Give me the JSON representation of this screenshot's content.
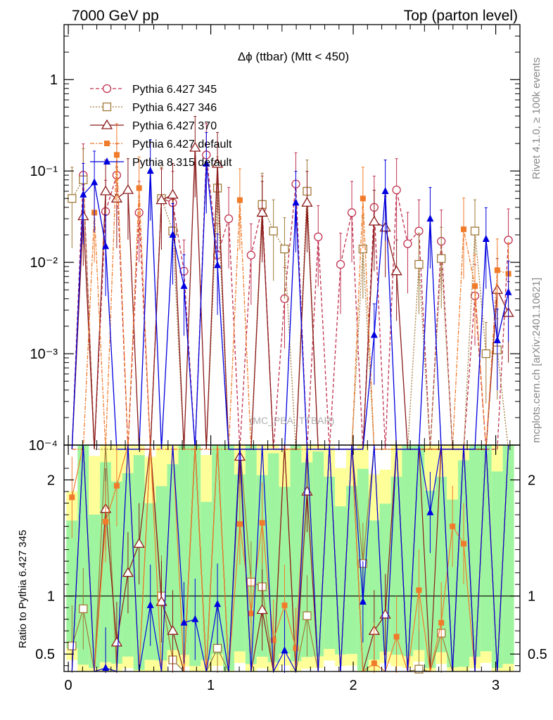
{
  "header": {
    "left": "7000 GeV pp",
    "right": "Top (parton level)"
  },
  "side_labels": {
    "rivet": "Rivet 4.1.0, ≥ 100k events",
    "mcplots": "mcplots.cern.ch [arXiv:2401.10621]"
  },
  "chart_data": [
    {
      "panel": "main",
      "type": "line",
      "title": "Δϕ (ttbar) (Mtt < 450)",
      "watermark": "(MC_PBA_TTBAR)",
      "yscale": "log",
      "ylim": [
        0.0001,
        4
      ],
      "xlim": [
        -0.03,
        3.17
      ],
      "ytick_labels": [
        "1",
        "10⁻¹",
        "10⁻²",
        "10⁻³",
        "10⁻⁴"
      ],
      "ytick_values": [
        1,
        0.1,
        0.01,
        0.001,
        0.0001
      ],
      "x": [
        0.026,
        0.105,
        0.183,
        0.262,
        0.34,
        0.419,
        0.497,
        0.576,
        0.654,
        0.733,
        0.812,
        0.89,
        0.969,
        1.047,
        1.126,
        1.204,
        1.283,
        1.361,
        1.44,
        1.518,
        1.597,
        1.676,
        1.754,
        1.833,
        1.911,
        1.99,
        2.068,
        2.147,
        2.225,
        2.304,
        2.382,
        2.461,
        2.54,
        2.618,
        2.697,
        2.775,
        2.854,
        2.932,
        3.011,
        3.089
      ],
      "series": [
        {
          "name": "Pythia 6.427 345",
          "color": "#c0314f",
          "marker": "circle-open",
          "dash": "5,3",
          "values": [
            9e-05,
            0.09,
            9e-05,
            0.036,
            0.09,
            9e-05,
            0.035,
            9e-05,
            0.05,
            0.045,
            0.008,
            9e-05,
            0.15,
            0.012,
            0.03,
            9e-05,
            0.012,
            0.04,
            9e-05,
            0.004,
            0.072,
            9e-05,
            0.019,
            9e-05,
            0.0095,
            0.035,
            9e-05,
            0.04,
            9e-05,
            0.062,
            0.016,
            0.022,
            9e-05,
            0.017,
            9e-05,
            9e-05,
            0.0043,
            9e-05,
            9e-05,
            0.0175
          ]
        },
        {
          "name": "Pythia 6.427 346",
          "color": "#a07a3a",
          "marker": "square-open",
          "dash": "2,2",
          "values": [
            0.05,
            0.08,
            9e-05,
            9e-05,
            9e-05,
            9e-05,
            9e-05,
            9e-05,
            0.05,
            0.022,
            9e-05,
            9e-05,
            9e-05,
            0.065,
            9e-05,
            9e-05,
            9e-05,
            0.043,
            0.022,
            0.014,
            9e-05,
            0.06,
            9e-05,
            9e-05,
            9e-05,
            9e-05,
            0.014,
            9e-05,
            9e-05,
            9e-05,
            9e-05,
            0.0095,
            9e-05,
            0.011,
            9e-05,
            9e-05,
            0.022,
            0.001,
            0.0011,
            9e-05
          ]
        },
        {
          "name": "Pythia 6.427 370",
          "color": "#8b1a1a",
          "marker": "triangle-open",
          "dash": "",
          "values": [
            9e-05,
            0.032,
            9e-05,
            0.06,
            0.05,
            0.062,
            9e-05,
            9e-05,
            0.048,
            0.055,
            9e-05,
            0.18,
            9e-05,
            0.12,
            9e-05,
            9e-05,
            9e-05,
            0.035,
            9e-05,
            9e-05,
            9e-05,
            0.045,
            9e-05,
            9e-05,
            9e-05,
            9e-05,
            9e-05,
            0.028,
            0.024,
            0.008,
            9e-05,
            9e-05,
            9e-05,
            9e-05,
            9e-05,
            9e-05,
            9e-05,
            9e-05,
            0.005,
            0.0028
          ]
        },
        {
          "name": "Pythia 6.427 default",
          "color": "#f07b2a",
          "marker": "square-filled",
          "dash": "6,2,2,2",
          "values": [
            9e-05,
            9e-05,
            0.035,
            9e-05,
            0.15,
            9e-05,
            0.065,
            9e-05,
            9e-05,
            9e-05,
            9e-05,
            9e-05,
            9e-05,
            9e-05,
            9e-05,
            0.048,
            9e-05,
            9e-05,
            9e-05,
            9e-05,
            9e-05,
            9e-05,
            9e-05,
            9e-05,
            9e-05,
            9e-05,
            0.05,
            9e-05,
            9e-05,
            9e-05,
            9e-05,
            9e-05,
            9e-05,
            9e-05,
            9e-05,
            0.023,
            0.0055,
            9e-05,
            0.0082,
            0.0075
          ]
        },
        {
          "name": "Pythia 8.315 default",
          "color": "#0000e0",
          "marker": "triangle-filled",
          "dash": "",
          "values": [
            9e-05,
            0.055,
            0.075,
            0.015,
            9e-05,
            9e-05,
            9e-05,
            0.1,
            9e-05,
            0.02,
            0.0055,
            9e-05,
            0.12,
            0.0093,
            9e-05,
            9e-05,
            9e-05,
            9e-05,
            9e-05,
            9e-05,
            0.045,
            9e-05,
            9e-05,
            9e-05,
            9e-05,
            9e-05,
            9e-05,
            0.0016,
            0.06,
            9e-05,
            9e-05,
            9e-05,
            0.03,
            9e-05,
            9e-05,
            9e-05,
            9e-05,
            0.018,
            0.0014,
            0.0047
          ]
        }
      ],
      "legend_position": "top-left"
    },
    {
      "panel": "ratio",
      "type": "line",
      "ylabel": "Ratio to Pythia 6.427 345",
      "ylim": [
        0.35,
        2.3
      ],
      "xlim": [
        -0.03,
        3.17
      ],
      "reference_line": 1,
      "ytick_labels_left": [
        "2",
        "1",
        "0.5"
      ],
      "ytick_labels_right": [
        "2",
        "1",
        "0.5"
      ],
      "ytick_values": [
        2,
        1,
        0.5
      ],
      "xtick_labels": [
        "0",
        "1",
        "2",
        "3"
      ],
      "xtick_values": [
        0,
        1,
        2,
        3
      ],
      "band_inner_color": "#9ff59f",
      "band_outer_color": "#ffff99",
      "series": [
        {
          "name": "Pythia 6.427 346",
          "color": "#a07a3a",
          "marker": "square-open",
          "values": [
            0.57,
            0.89,
            null,
            null,
            null,
            null,
            null,
            null,
            1.0,
            0.45,
            null,
            null,
            null,
            0.55,
            null,
            null,
            1.12,
            1.08,
            null,
            null,
            null,
            0.83,
            null,
            null,
            null,
            null,
            1.28,
            null,
            null,
            null,
            null,
            0.37,
            null,
            0.68,
            null,
            null,
            null,
            null,
            null,
            null
          ]
        },
        {
          "name": "Pythia 6.427 370",
          "color": "#8b1a1a",
          "marker": "triangle-open",
          "values": [
            null,
            null,
            null,
            1.75,
            0.6,
            1.2,
            1.45,
            null,
            0.95,
            0.7,
            null,
            null,
            null,
            null,
            null,
            2.2,
            null,
            0.88,
            null,
            null,
            null,
            1.9,
            null,
            null,
            null,
            null,
            null,
            0.7,
            0.84,
            null,
            null,
            null,
            null,
            null,
            null,
            null,
            null,
            null,
            null,
            null
          ]
        },
        {
          "name": "Pythia 6.427 default",
          "color": "#f07b2a",
          "marker": "square-filled",
          "values": [
            1.85,
            null,
            null,
            1.64,
            1.95,
            null,
            null,
            null,
            null,
            null,
            null,
            null,
            null,
            null,
            null,
            1.62,
            0.85,
            1.63,
            0.62,
            0.92,
            0.55,
            null,
            null,
            null,
            null,
            null,
            null,
            0.42,
            null,
            0.65,
            null,
            1.05,
            null,
            0.77,
            1.6,
            1.45,
            null,
            null,
            null,
            null
          ]
        },
        {
          "name": "Pythia 8.315 default",
          "color": "#0000e0",
          "marker": "triangle-filled",
          "values": [
            null,
            null,
            null,
            0.38,
            null,
            null,
            null,
            0.92,
            null,
            null,
            0.77,
            0.8,
            null,
            0.93,
            null,
            null,
            null,
            null,
            null,
            0.53,
            null,
            null,
            null,
            null,
            null,
            null,
            0.95,
            null,
            null,
            null,
            null,
            null,
            1.72,
            null,
            null,
            null,
            null,
            null,
            null,
            null
          ]
        }
      ]
    }
  ]
}
